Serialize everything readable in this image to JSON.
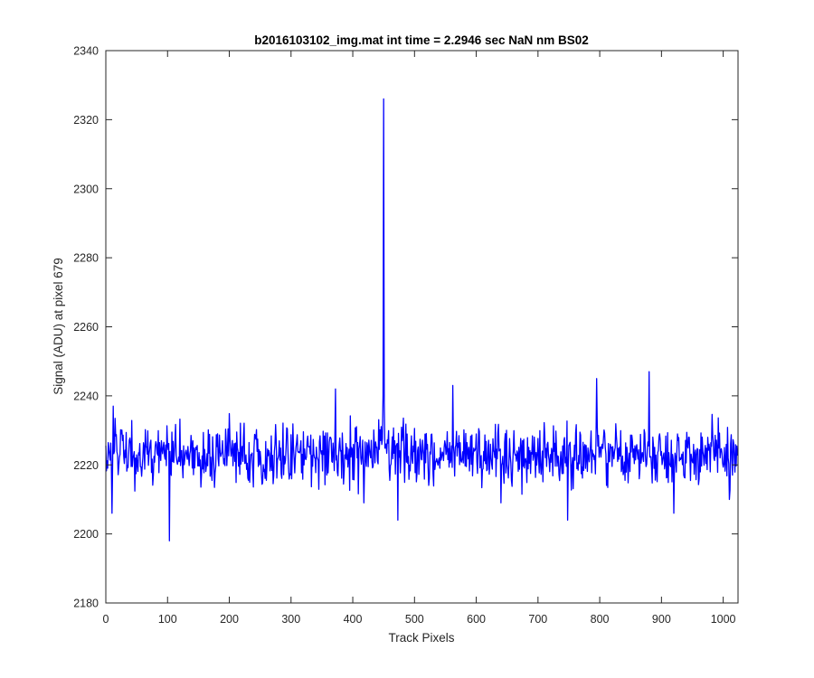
{
  "chart_data": {
    "type": "line",
    "title": "b2016103102_img.mat int time = 2.2946 sec  NaN nm BS02",
    "xlabel": "Track Pixels",
    "ylabel": "Signal (ADU) at pixel 679",
    "xlim": [
      0,
      1024
    ],
    "ylim": [
      2180,
      2340
    ],
    "xticks": [
      0,
      100,
      200,
      300,
      400,
      500,
      600,
      700,
      800,
      900,
      1000
    ],
    "yticks": [
      2180,
      2200,
      2220,
      2240,
      2260,
      2280,
      2300,
      2320,
      2340
    ],
    "grid": false,
    "legend": "none",
    "series": [
      {
        "color": "#0000ff",
        "baseline": 2223,
        "noise_amplitude": 7,
        "n_points": 1024,
        "features": [
          {
            "x": 10,
            "y": 2206
          },
          {
            "x": 12,
            "y": 2237
          },
          {
            "x": 103,
            "y": 2198
          },
          {
            "x": 372,
            "y": 2242
          },
          {
            "x": 418,
            "y": 2209
          },
          {
            "x": 449,
            "y": 2240
          },
          {
            "x": 450,
            "y": 2326
          },
          {
            "x": 451,
            "y": 2238
          },
          {
            "x": 473,
            "y": 2204
          },
          {
            "x": 562,
            "y": 2243
          },
          {
            "x": 640,
            "y": 2209
          },
          {
            "x": 748,
            "y": 2204
          },
          {
            "x": 795,
            "y": 2245
          },
          {
            "x": 880,
            "y": 2247
          },
          {
            "x": 920,
            "y": 2206
          },
          {
            "x": 1010,
            "y": 2210
          }
        ]
      }
    ]
  }
}
